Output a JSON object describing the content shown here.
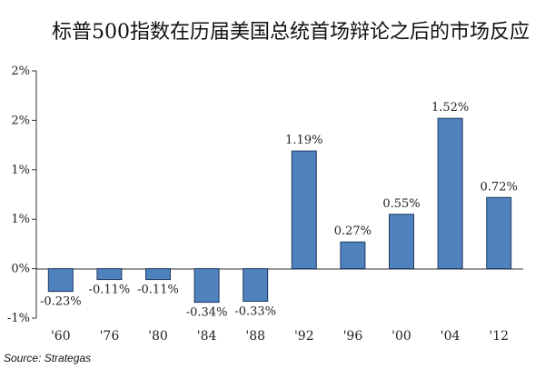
{
  "chart_data": {
    "type": "bar",
    "title": "标普500指数在历届美国总统首场辩论之后的市场反应",
    "categories": [
      "'60",
      "'76",
      "'80",
      "'84",
      "'88",
      "'92",
      "'96",
      "'00",
      "'04",
      "'12"
    ],
    "values": [
      -0.23,
      -0.11,
      -0.11,
      -0.34,
      -0.33,
      1.19,
      0.27,
      0.55,
      1.52,
      0.72
    ],
    "data_labels": [
      "-0.23%",
      "-0.11%",
      "-0.11%",
      "-0.34%",
      "-0.33%",
      "1.19%",
      "0.27%",
      "0.55%",
      "1.52%",
      "0.72%"
    ],
    "y_tick_labels": [
      "-1%",
      "0%",
      "1%",
      "1%",
      "2%",
      "2%"
    ],
    "y_tick_values": [
      -0.5,
      0,
      0.5,
      1.0,
      1.5,
      2.0
    ],
    "ylim": [
      -0.5,
      2.0
    ],
    "grid": false,
    "bar_color": "#4f81bd",
    "bar_edge_color": "#1f3a63",
    "source": "Source: Strategas"
  }
}
